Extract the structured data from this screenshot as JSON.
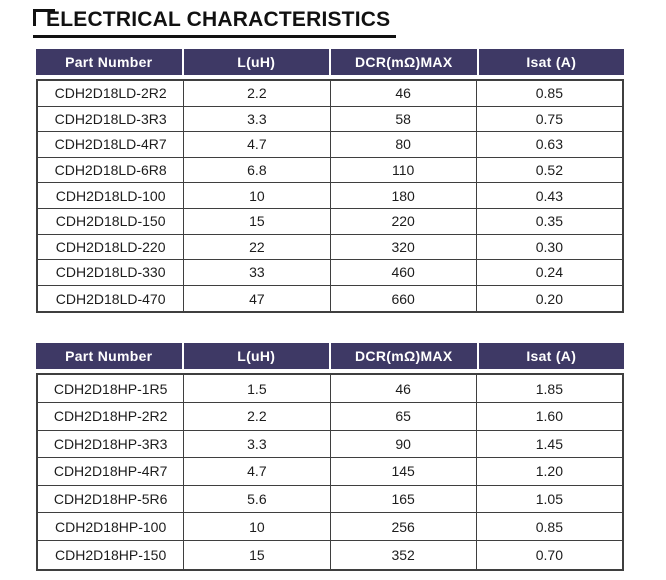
{
  "page_title": "ELECTRICAL CHARACTERISTICS",
  "colors": {
    "header_bg": "#3e3965",
    "header_text": "#ffffff",
    "body_border": "#3f3f3f",
    "title_color": "#111111"
  },
  "tables": [
    {
      "columns": [
        "Part Number",
        "L(uH)",
        "DCR(mΩ)MAX",
        "Isat (A)"
      ],
      "rows": [
        [
          "CDH2D18LD-2R2",
          "2.2",
          "46",
          "0.85"
        ],
        [
          "CDH2D18LD-3R3",
          "3.3",
          "58",
          "0.75"
        ],
        [
          "CDH2D18LD-4R7",
          "4.7",
          "80",
          "0.63"
        ],
        [
          "CDH2D18LD-6R8",
          "6.8",
          "110",
          "0.52"
        ],
        [
          "CDH2D18LD-100",
          "10",
          "180",
          "0.43"
        ],
        [
          "CDH2D18LD-150",
          "15",
          "220",
          "0.35"
        ],
        [
          "CDH2D18LD-220",
          "22",
          "320",
          "0.30"
        ],
        [
          "CDH2D18LD-330",
          "33",
          "460",
          "0.24"
        ],
        [
          "CDH2D18LD-470",
          "47",
          "660",
          "0.20"
        ]
      ]
    },
    {
      "columns": [
        "Part Number",
        "L(uH)",
        "DCR(mΩ)MAX",
        "Isat (A)"
      ],
      "rows": [
        [
          "CDH2D18HP-1R5",
          "1.5",
          "46",
          "1.85"
        ],
        [
          "CDH2D18HP-2R2",
          "2.2",
          "65",
          "1.60"
        ],
        [
          "CDH2D18HP-3R3",
          "3.3",
          "90",
          "1.45"
        ],
        [
          "CDH2D18HP-4R7",
          "4.7",
          "145",
          "1.20"
        ],
        [
          "CDH2D18HP-5R6",
          "5.6",
          "165",
          "1.05"
        ],
        [
          "CDH2D18HP-100",
          "10",
          "256",
          "0.85"
        ],
        [
          "CDH2D18HP-150",
          "15",
          "352",
          "0.70"
        ]
      ]
    }
  ]
}
